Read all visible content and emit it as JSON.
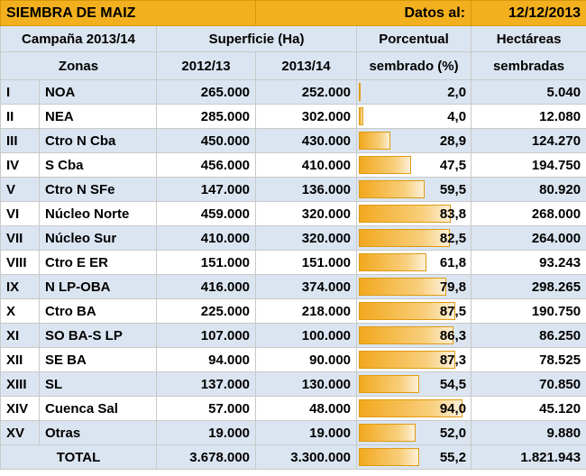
{
  "title": "SIEMBRA DE MAIZ",
  "date_label": "Datos al:",
  "date_value": "12/12/2013",
  "headers": {
    "campaign": "Campaña 2013/14",
    "surface": "Superficie (Ha)",
    "percent_line1": "Porcentual",
    "percent_line2": "sembrado (%)",
    "hectares_line1": "Hectáreas",
    "hectares_line2": "sembradas",
    "zones": "Zonas",
    "year_a": "2012/13",
    "year_b": "2013/14"
  },
  "rows": [
    {
      "roman": "I",
      "zone": "NOA",
      "a": "265.000",
      "b": "252.000",
      "pct": "2,0",
      "pct_value": 2.0,
      "ha": "5.040"
    },
    {
      "roman": "II",
      "zone": "NEA",
      "a": "285.000",
      "b": "302.000",
      "pct": "4,0",
      "pct_value": 4.0,
      "ha": "12.080"
    },
    {
      "roman": "III",
      "zone": "Ctro N Cba",
      "a": "450.000",
      "b": "430.000",
      "pct": "28,9",
      "pct_value": 28.9,
      "ha": "124.270"
    },
    {
      "roman": "IV",
      "zone": "S Cba",
      "a": "456.000",
      "b": "410.000",
      "pct": "47,5",
      "pct_value": 47.5,
      "ha": "194.750"
    },
    {
      "roman": "V",
      "zone": "Ctro N SFe",
      "a": "147.000",
      "b": "136.000",
      "pct": "59,5",
      "pct_value": 59.5,
      "ha": "80.920"
    },
    {
      "roman": "VI",
      "zone": "Núcleo Norte",
      "a": "459.000",
      "b": "320.000",
      "pct": "83,8",
      "pct_value": 83.8,
      "ha": "268.000"
    },
    {
      "roman": "VII",
      "zone": "Núcleo Sur",
      "a": "410.000",
      "b": "320.000",
      "pct": "82,5",
      "pct_value": 82.5,
      "ha": "264.000"
    },
    {
      "roman": "VIII",
      "zone": "Ctro E ER",
      "a": "151.000",
      "b": "151.000",
      "pct": "61,8",
      "pct_value": 61.8,
      "ha": "93.243"
    },
    {
      "roman": "IX",
      "zone": "N LP-OBA",
      "a": "416.000",
      "b": "374.000",
      "pct": "79,8",
      "pct_value": 79.8,
      "ha": "298.265"
    },
    {
      "roman": "X",
      "zone": "Ctro BA",
      "a": "225.000",
      "b": "218.000",
      "pct": "87,5",
      "pct_value": 87.5,
      "ha": "190.750"
    },
    {
      "roman": "XI",
      "zone": "SO BA-S LP",
      "a": "107.000",
      "b": "100.000",
      "pct": "86,3",
      "pct_value": 86.3,
      "ha": "86.250"
    },
    {
      "roman": "XII",
      "zone": "SE BA",
      "a": "94.000",
      "b": "90.000",
      "pct": "87,3",
      "pct_value": 87.3,
      "ha": "78.525"
    },
    {
      "roman": "XIII",
      "zone": "SL",
      "a": "137.000",
      "b": "130.000",
      "pct": "54,5",
      "pct_value": 54.5,
      "ha": "70.850"
    },
    {
      "roman": "XIV",
      "zone": "Cuenca Sal",
      "a": "57.000",
      "b": "48.000",
      "pct": "94,0",
      "pct_value": 94.0,
      "ha": "45.120"
    },
    {
      "roman": "XV",
      "zone": "Otras",
      "a": "19.000",
      "b": "19.000",
      "pct": "52,0",
      "pct_value": 52.0,
      "ha": "9.880"
    }
  ],
  "total": {
    "label": "TOTAL",
    "a": "3.678.000",
    "b": "3.300.000",
    "pct": "55,2",
    "pct_value": 55.2,
    "ha": "1.821.943"
  },
  "colors": {
    "title_bg": "#f2b01e",
    "header_bg": "#dbe5f1",
    "bar": "#f2a81e"
  }
}
